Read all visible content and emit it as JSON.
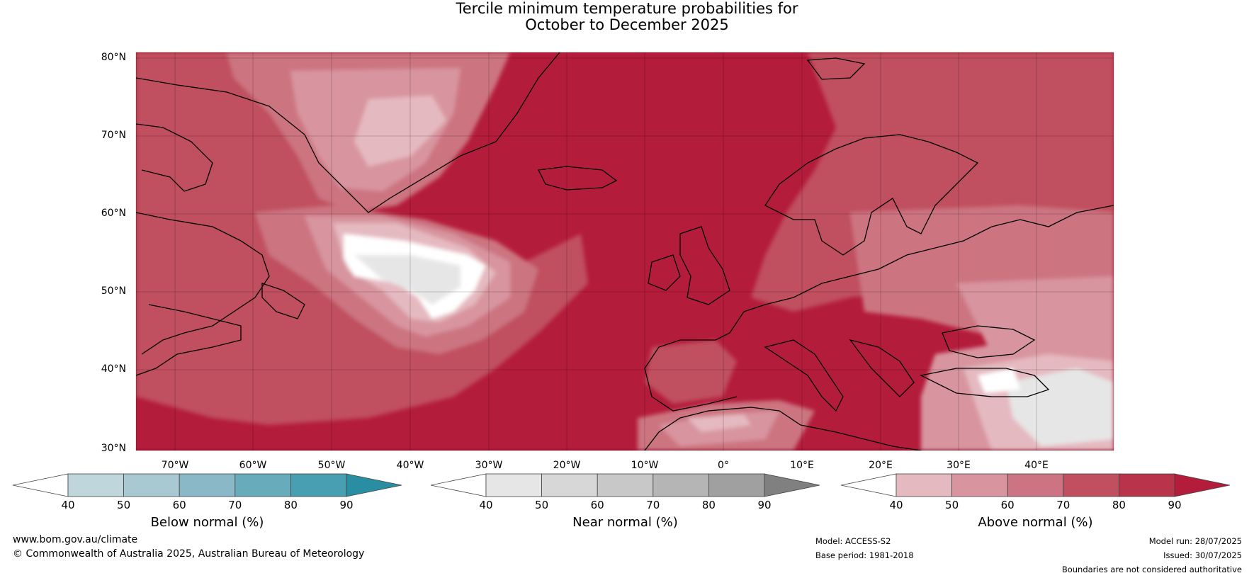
{
  "title": {
    "line1": "Tercile minimum temperature probabilities for",
    "line2": "October to December 2025"
  },
  "map": {
    "lat_labels": [
      "80°N",
      "70°N",
      "60°N",
      "50°N",
      "40°N",
      "30°N"
    ],
    "lon_labels": [
      "70°W",
      "60°W",
      "50°W",
      "40°W",
      "30°W",
      "20°W",
      "10°W",
      "0°",
      "10°E",
      "20°E",
      "30°E",
      "40°E"
    ],
    "ocean_color": "#b41c3b"
  },
  "colorbars": [
    {
      "label": "Below normal (%)",
      "ticks": [
        "40",
        "50",
        "60",
        "70",
        "80",
        "90"
      ],
      "colors": [
        "#ffffff",
        "#bfd6dd",
        "#a8c9d2",
        "#8ab8c6",
        "#68abbb",
        "#479fb1",
        "#2a8ea3"
      ]
    },
    {
      "label": "Near normal (%)",
      "ticks": [
        "40",
        "50",
        "60",
        "70",
        "80",
        "90"
      ],
      "colors": [
        "#ffffff",
        "#e6e6e6",
        "#d7d7d7",
        "#c8c8c8",
        "#b5b5b5",
        "#a0a0a0",
        "#808080"
      ]
    },
    {
      "label": "Above normal (%)",
      "ticks": [
        "40",
        "50",
        "60",
        "70",
        "80",
        "90"
      ],
      "colors": [
        "#ffffff",
        "#e5b9c0",
        "#d8959f",
        "#cc7481",
        "#c0505f",
        "#b7344a",
        "#b41c3b"
      ]
    }
  ],
  "footer": {
    "website": "www.bom.gov.au/climate",
    "copyright": "© Commonwealth of Australia 2025, Australian Bureau of Meteorology",
    "model": "Model: ACCESS-S2",
    "base_period": "Base period: 1981-2018",
    "model_run": "Model run: 28/07/2025",
    "issued": "Issued: 30/07/2025",
    "disclaimer": "Boundaries are not considered authoritative"
  }
}
